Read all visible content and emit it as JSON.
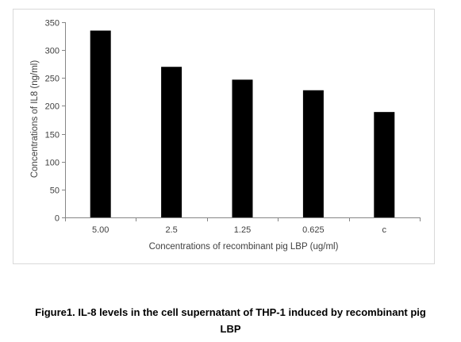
{
  "chart_data": {
    "type": "bar",
    "categories": [
      "5.00",
      "2.5",
      "1.25",
      "0.625",
      "c"
    ],
    "values": [
      335,
      270,
      247,
      228,
      189
    ],
    "xlabel": "Concentrations of recombinant pig LBP (ug/ml)",
    "ylabel": "Concentrations of IL8 (ng/ml)",
    "ylim": [
      0,
      350
    ],
    "yticks": [
      0,
      50,
      100,
      150,
      200,
      250,
      300,
      350
    ],
    "grid": false,
    "legend": "none",
    "bar_color": "#000000"
  },
  "caption": {
    "line1": "Figure1. IL-8 levels in the cell supernatant of THP-1 induced by recombinant pig",
    "line2": "LBP"
  }
}
